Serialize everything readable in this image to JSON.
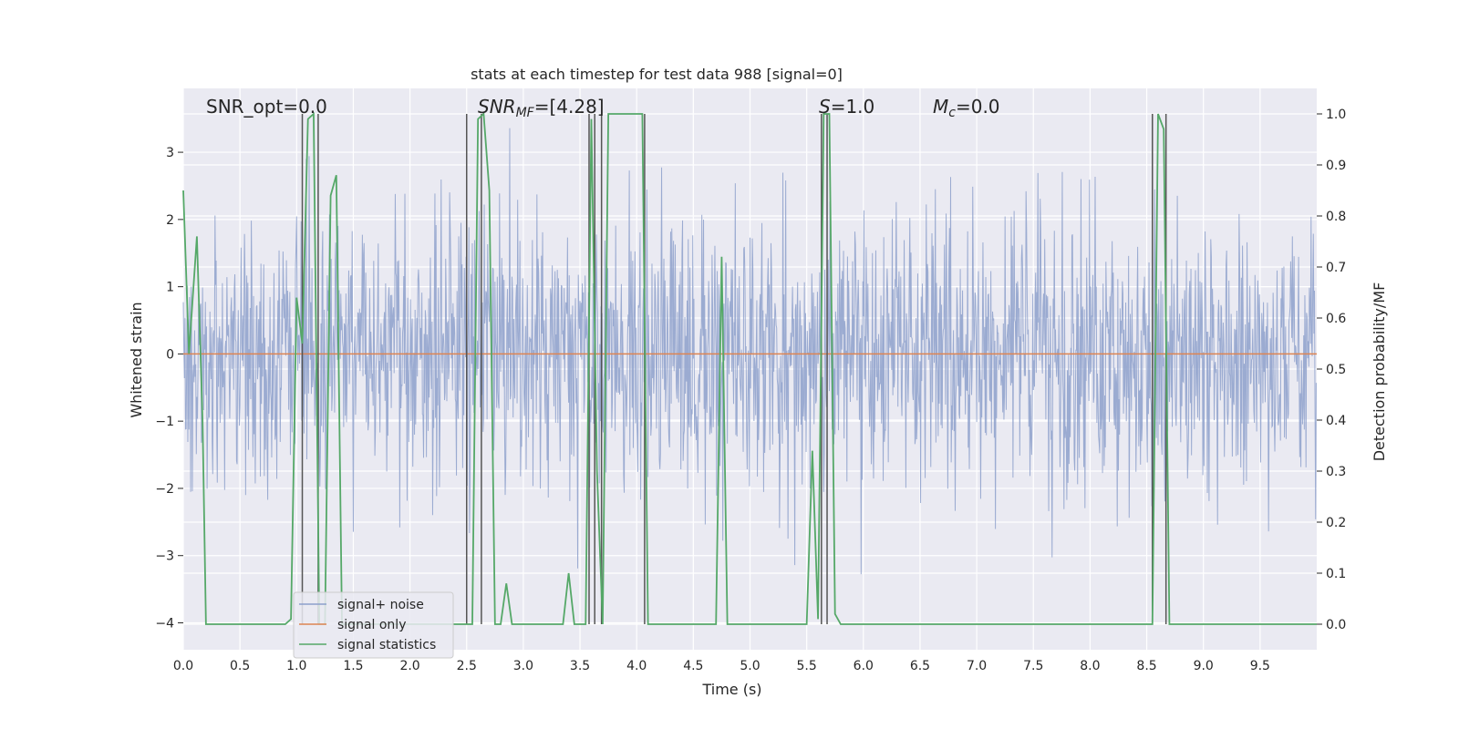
{
  "chart_data": {
    "type": "line",
    "title": "stats at each timestep for test data 988 [signal=0]",
    "xlabel": "Time (s)",
    "ylabel": "Whitened strain",
    "y2label": "Detection probability/MF",
    "xlim": [
      0,
      10
    ],
    "ylim": [
      -4.4,
      3.95
    ],
    "y2lim": [
      -0.05,
      1.05
    ],
    "xticks": [
      "0.0",
      "0.5",
      "1.0",
      "1.5",
      "2.0",
      "2.5",
      "3.0",
      "3.5",
      "4.0",
      "4.5",
      "5.0",
      "5.5",
      "6.0",
      "6.5",
      "7.0",
      "7.5",
      "8.0",
      "8.5",
      "9.0",
      "9.5"
    ],
    "xtick_values": [
      0,
      0.5,
      1,
      1.5,
      2,
      2.5,
      3,
      3.5,
      4,
      4.5,
      5,
      5.5,
      6,
      6.5,
      7,
      7.5,
      8,
      8.5,
      9,
      9.5
    ],
    "yticks": [
      "3",
      "2",
      "1",
      "0",
      "−1",
      "−2",
      "−3",
      "−4"
    ],
    "ytick_values": [
      3,
      2,
      1,
      0,
      -1,
      -2,
      -3,
      -4
    ],
    "y2ticks": [
      "1.0",
      "0.9",
      "0.8",
      "0.7",
      "0.6",
      "0.5",
      "0.4",
      "0.3",
      "0.2",
      "0.1",
      "0.0"
    ],
    "y2tick_values": [
      1.0,
      0.9,
      0.8,
      0.7,
      0.6,
      0.5,
      0.4,
      0.3,
      0.2,
      0.1,
      0.0
    ],
    "grid": true,
    "legend_position": "lower-left",
    "annotations": {
      "snr_opt": "SNR_opt=0.0",
      "snr_mf_sym": "SNR",
      "snr_mf_sub": "MF",
      "snr_mf_val": "=[4.28]",
      "s_sym": "S",
      "s_val": "=1.0",
      "mc_sym": "M",
      "mc_sub": "c",
      "mc_val": "=0.0"
    },
    "series": [
      {
        "name": "signal+ noise",
        "color": "#8da0cb",
        "axis": "left",
        "description_values": "whitened noise samples roughly Gaussian, sigma ~1, range approx -4 to 3.6",
        "seed": 988,
        "n_samples": 2000,
        "sigma": 1.0
      },
      {
        "name": "signal only",
        "color": "#dd8452",
        "axis": "left",
        "x": [
          0,
          10
        ],
        "y": [
          0,
          0
        ]
      },
      {
        "name": "signal statistics",
        "color": "#55a868",
        "axis": "right",
        "x": [
          0.0,
          0.05,
          0.12,
          0.17,
          0.2,
          0.9,
          0.95,
          1.0,
          1.05,
          1.1,
          1.15,
          1.2,
          1.25,
          1.3,
          1.35,
          1.4,
          1.45,
          1.5,
          2.55,
          2.6,
          2.65,
          2.7,
          2.75,
          2.8,
          2.85,
          2.9,
          2.95,
          3.0,
          3.35,
          3.4,
          3.45,
          3.55,
          3.6,
          3.65,
          3.7,
          3.75,
          4.05,
          4.1,
          4.15,
          4.7,
          4.75,
          4.8,
          5.5,
          5.55,
          5.6,
          5.65,
          5.7,
          5.75,
          5.8,
          8.55,
          8.6,
          8.65,
          8.7,
          8.75,
          10.0
        ],
        "y": [
          0.85,
          0.53,
          0.76,
          0.4,
          0.0,
          0.0,
          0.01,
          0.64,
          0.55,
          0.99,
          1.0,
          0.0,
          0.0,
          0.84,
          0.88,
          0.0,
          0.0,
          0.0,
          0.0,
          0.99,
          1.0,
          0.85,
          0.0,
          0.0,
          0.08,
          0.0,
          0.0,
          0.0,
          0.0,
          0.1,
          0.0,
          0.0,
          0.99,
          0.3,
          0.0,
          1.0,
          1.0,
          0.0,
          0.0,
          0.0,
          0.72,
          0.0,
          0.0,
          0.34,
          0.01,
          1.0,
          1.0,
          0.02,
          0.0,
          0.0,
          1.0,
          0.97,
          0.0,
          0.0,
          0.0
        ]
      }
    ],
    "vlines": {
      "color": "#555555",
      "x": [
        1.05,
        1.19,
        2.5,
        2.63,
        3.58,
        3.63,
        3.69,
        4.07,
        5.63,
        5.68,
        8.55,
        8.67
      ]
    }
  }
}
